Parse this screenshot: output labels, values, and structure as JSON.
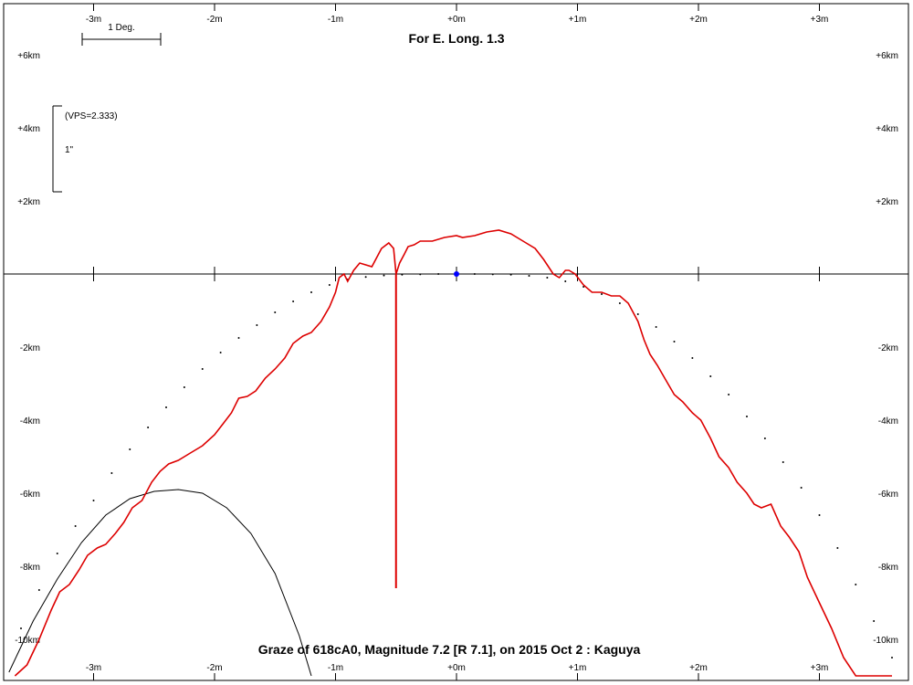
{
  "chart_data": {
    "type": "line",
    "title": "For E. Long. 1.3",
    "caption": "Graze of  618cA0,  Magnitude 7.2 [R 7.1],  on 2015 Oct  2  :  Kaguya",
    "x_tick_labels": [
      "-3m",
      "-2m",
      "-1m",
      "+0m",
      "+1m",
      "+2m",
      "+3m"
    ],
    "x_tick_values": [
      -3,
      -2,
      -1,
      0,
      1,
      2,
      3
    ],
    "y_tick_labels": [
      "+6km",
      "+4km",
      "+2km",
      "-2km",
      "-4km",
      "-6km",
      "-8km",
      "-10km"
    ],
    "y_tick_values": [
      6,
      4,
      2,
      -2,
      -4,
      -6,
      -8,
      -10
    ],
    "xlim": [
      -3.8,
      3.8
    ],
    "ylim": [
      -11,
      7
    ],
    "scale_bar_label": "1 Deg.",
    "vps_label": "(VPS=2.333)",
    "arcsec_label": "1\"",
    "colors": {
      "profile": "#dd0000",
      "star_marker": "#0000ff",
      "axes": "#000000"
    },
    "limb_profile": {
      "name": "",
      "x": [
        -3.65,
        -3.55,
        -3.45,
        -3.35,
        -3.28,
        -3.2,
        -3.12,
        -3.05,
        -2.97,
        -2.9,
        -2.82,
        -2.75,
        -2.68,
        -2.6,
        -2.52,
        -2.45,
        -2.38,
        -2.3,
        -2.2,
        -2.1,
        -2.0,
        -1.93,
        -1.86,
        -1.8,
        -1.73,
        -1.66,
        -1.58,
        -1.5,
        -1.42,
        -1.35,
        -1.27,
        -1.2,
        -1.12,
        -1.05,
        -1.0,
        -0.97,
        -0.93,
        -0.9,
        -0.85,
        -0.8,
        -0.7,
        -0.62,
        -0.56,
        -0.52,
        -0.5,
        -0.47,
        -0.43,
        -0.4,
        -0.35,
        -0.3,
        -0.2,
        -0.1,
        0.0,
        0.05,
        0.15,
        0.25,
        0.35,
        0.45,
        0.55,
        0.65,
        0.72,
        0.8,
        0.85,
        0.9,
        0.93,
        0.98,
        1.05,
        1.12,
        1.2,
        1.28,
        1.35,
        1.42,
        1.5,
        1.55,
        1.6,
        1.66,
        1.73,
        1.8,
        1.87,
        1.95,
        2.02,
        2.1,
        2.17,
        2.25,
        2.32,
        2.4,
        2.46,
        2.52,
        2.6,
        2.68,
        2.75,
        2.83,
        2.9,
        3.0,
        3.1,
        3.2,
        3.3,
        3.4,
        3.5,
        3.6
      ],
      "y": [
        -11.0,
        -10.7,
        -10.0,
        -9.2,
        -8.7,
        -8.5,
        -8.1,
        -7.7,
        -7.5,
        -7.4,
        -7.1,
        -6.8,
        -6.4,
        -6.2,
        -5.7,
        -5.4,
        -5.2,
        -5.1,
        -4.9,
        -4.7,
        -4.4,
        -4.1,
        -3.8,
        -3.4,
        -3.35,
        -3.2,
        -2.85,
        -2.6,
        -2.3,
        -1.9,
        -1.7,
        -1.6,
        -1.3,
        -0.9,
        -0.5,
        -0.1,
        0.0,
        -0.2,
        0.1,
        0.3,
        0.2,
        0.7,
        0.85,
        0.7,
        0.0,
        0.3,
        0.55,
        0.75,
        0.8,
        0.9,
        0.9,
        1.0,
        1.05,
        1.0,
        1.05,
        1.15,
        1.2,
        1.1,
        0.9,
        0.7,
        0.4,
        0.0,
        -0.1,
        0.1,
        0.1,
        0.0,
        -0.3,
        -0.5,
        -0.5,
        -0.6,
        -0.6,
        -0.8,
        -1.3,
        -1.8,
        -2.2,
        -2.5,
        -2.9,
        -3.3,
        -3.5,
        -3.8,
        -4.0,
        -4.5,
        -5.0,
        -5.3,
        -5.7,
        -6.0,
        -6.3,
        -6.4,
        -6.3,
        -6.9,
        -7.2,
        -7.6,
        -8.3,
        -9.0,
        -9.7,
        -10.5,
        -11.0,
        -11.0,
        -11.0,
        -11.0
      ]
    },
    "mean_limb": {
      "name": "",
      "x": [
        -3.6,
        -3.45,
        -3.3,
        -3.15,
        -3.0,
        -2.85,
        -2.7,
        -2.55,
        -2.4,
        -2.25,
        -2.1,
        -1.95,
        -1.8,
        -1.65,
        -1.5,
        -1.35,
        -1.2,
        -1.05,
        -0.9,
        -0.75,
        -0.6,
        -0.45,
        -0.3,
        -0.15,
        0.0,
        0.15,
        0.3,
        0.45,
        0.6,
        0.75,
        0.9,
        1.05,
        1.2,
        1.35,
        1.5,
        1.65,
        1.8,
        1.95,
        2.1,
        2.25,
        2.4,
        2.55,
        2.7,
        2.85,
        3.0,
        3.15,
        3.3,
        3.45,
        3.6
      ],
      "y": [
        -9.7,
        -8.65,
        -7.65,
        -6.9,
        -6.2,
        -5.45,
        -4.8,
        -4.2,
        -3.65,
        -3.1,
        -2.6,
        -2.15,
        -1.75,
        -1.4,
        -1.05,
        -0.75,
        -0.5,
        -0.3,
        -0.15,
        -0.08,
        -0.04,
        -0.02,
        -0.01,
        0.0,
        0.0,
        0.0,
        -0.01,
        -0.02,
        -0.05,
        -0.1,
        -0.2,
        -0.35,
        -0.55,
        -0.8,
        -1.1,
        -1.45,
        -1.85,
        -2.3,
        -2.8,
        -3.3,
        -3.9,
        -4.5,
        -5.15,
        -5.85,
        -6.6,
        -7.5,
        -8.5,
        -9.5,
        -10.5
      ]
    },
    "lower_arc": {
      "name": "",
      "apex_x": -2.25,
      "apex_y": -5.9,
      "x": [
        -3.7,
        -3.5,
        -3.3,
        -3.1,
        -2.9,
        -2.7,
        -2.5,
        -2.3,
        -2.1,
        -1.9,
        -1.7,
        -1.5,
        -1.3,
        -1.2
      ],
      "y": [
        -10.9,
        -9.5,
        -8.35,
        -7.35,
        -6.6,
        -6.15,
        -5.95,
        -5.9,
        -6.0,
        -6.4,
        -7.1,
        -8.2,
        -9.9,
        -11.0
      ]
    },
    "graze_line": {
      "x": -0.5,
      "y_top": 0.0,
      "y_bottom": -8.6
    },
    "star_marker": {
      "x": 0.0,
      "y": 0.0
    }
  }
}
